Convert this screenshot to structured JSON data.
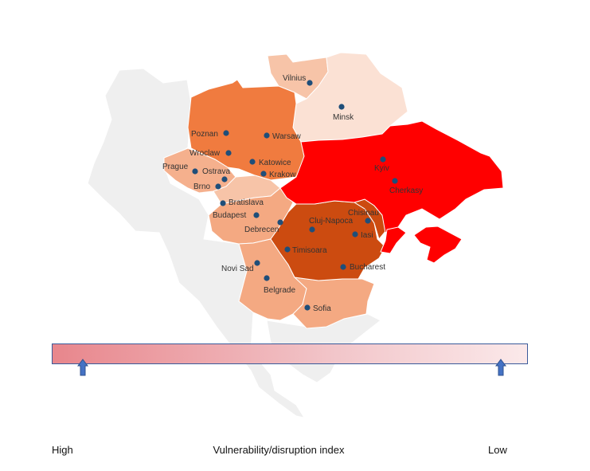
{
  "legend": {
    "high_label": "High",
    "low_label": "Low",
    "title": "Vulnerability/disruption index",
    "gradient_colors": [
      "#e8868c",
      "#fbe9ea"
    ],
    "marker_color": "#4472c4"
  },
  "colors": {
    "outside_region": "#efefef",
    "ukraine": "#ff0000",
    "romania_moldova": "#cc4b10",
    "poland": "#f07b3f",
    "hungary_serbia_bulgaria": "#f4a982",
    "czechia_slovakia": "#f5b08d",
    "lithuania": "#f7c4a8",
    "belarus": "#fbe1d4",
    "city_dot": "#1f4e79"
  },
  "cities": [
    {
      "name": "Vilnius"
    },
    {
      "name": "Minsk"
    },
    {
      "name": "Poznan"
    },
    {
      "name": "Warsaw"
    },
    {
      "name": "Wroclaw"
    },
    {
      "name": "Katowice"
    },
    {
      "name": "Prague"
    },
    {
      "name": "Ostrava"
    },
    {
      "name": "Krakow"
    },
    {
      "name": "Kyiv"
    },
    {
      "name": "Cherkasy"
    },
    {
      "name": "Brno"
    },
    {
      "name": "Bratislava"
    },
    {
      "name": "Budapest"
    },
    {
      "name": "Chisinau"
    },
    {
      "name": "Cluj-Napoca"
    },
    {
      "name": "Debrecen"
    },
    {
      "name": "Iasi"
    },
    {
      "name": "Timisoara"
    },
    {
      "name": "Novi Sad"
    },
    {
      "name": "Bucharest"
    },
    {
      "name": "Belgrade"
    },
    {
      "name": "Sofia"
    }
  ]
}
